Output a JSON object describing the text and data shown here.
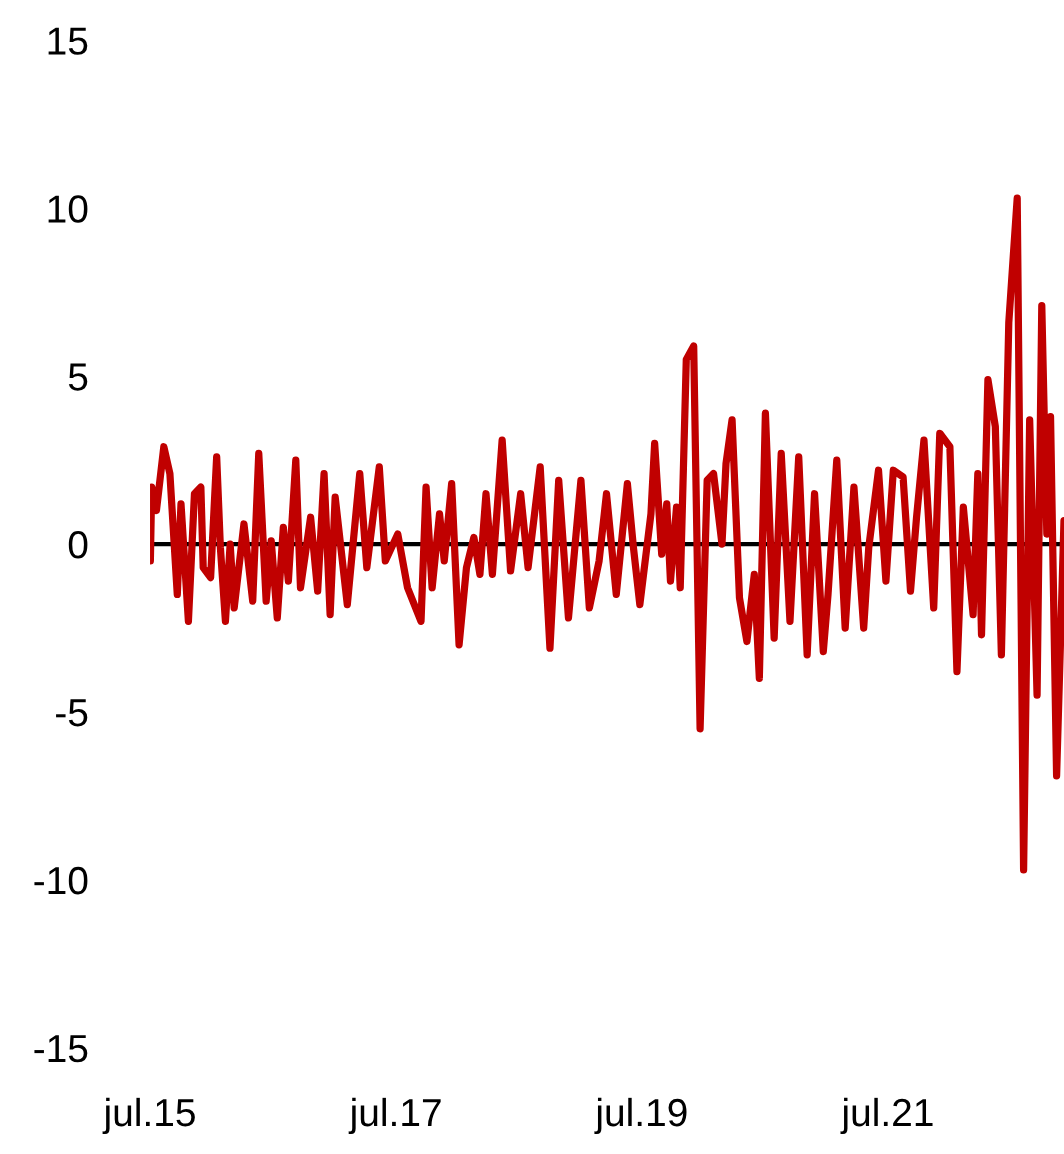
{
  "chart_data": {
    "type": "line",
    "x": [
      "2015-07-02",
      "2015-07-06",
      "2015-07-20",
      "2015-08-11",
      "2015-08-29",
      "2015-09-20",
      "2015-10-01",
      "2015-10-23",
      "2015-11-10",
      "2015-11-29",
      "2015-12-06",
      "2015-12-28",
      "2016-01-15",
      "2016-01-26",
      "2016-02-10",
      "2016-02-24",
      "2016-03-07",
      "2016-04-05",
      "2016-05-01",
      "2016-05-19",
      "2016-06-10",
      "2016-06-25",
      "2016-07-13",
      "2016-07-31",
      "2016-08-15",
      "2016-09-06",
      "2016-09-20",
      "2016-10-20",
      "2016-11-10",
      "2016-11-29",
      "2016-12-17",
      "2017-01-01",
      "2017-02-06",
      "2017-03-15",
      "2017-04-05",
      "2017-05-12",
      "2017-05-30",
      "2017-07-06",
      "2017-08-04",
      "2017-09-13",
      "2017-09-28",
      "2017-10-16",
      "2017-11-07",
      "2017-11-21",
      "2017-12-13",
      "2018-01-04",
      "2018-01-26",
      "2018-02-17",
      "2018-03-07",
      "2018-03-25",
      "2018-04-13",
      "2018-05-12",
      "2018-06-06",
      "2018-07-06",
      "2018-07-28",
      "2018-09-02",
      "2018-10-01",
      "2018-10-27",
      "2018-11-25",
      "2019-01-01",
      "2019-01-26",
      "2019-02-24",
      "2019-03-18",
      "2019-04-16",
      "2019-05-19",
      "2019-06-06",
      "2019-06-25",
      "2019-07-28",
      "2019-08-08",
      "2019-08-29",
      "2019-09-13",
      "2019-09-24",
      "2019-10-12",
      "2019-10-23",
      "2019-11-10",
      "2019-12-02",
      "2019-12-21",
      "2020-01-11",
      "2020-01-30",
      "2020-02-24",
      "2020-03-07",
      "2020-03-25",
      "2020-04-16",
      "2020-05-08",
      "2020-05-30",
      "2020-06-14",
      "2020-07-02",
      "2020-07-28",
      "2020-08-18",
      "2020-09-13",
      "2020-10-09",
      "2020-11-03",
      "2020-11-25",
      "2020-12-21",
      "2021-01-04",
      "2021-01-30",
      "2021-02-24",
      "2021-03-22",
      "2021-04-20",
      "2021-05-05",
      "2021-06-03",
      "2021-06-25",
      "2021-07-17",
      "2021-08-15",
      "2021-09-06",
      "2021-09-24",
      "2021-10-16",
      "2021-11-14",
      "2021-12-02",
      "2022-01-01",
      "2022-01-22",
      "2022-02-10",
      "2022-03-11",
      "2022-03-25",
      "2022-04-05",
      "2022-04-24",
      "2022-05-16",
      "2022-06-03",
      "2022-06-25",
      "2022-07-20",
      "2022-08-08",
      "2022-08-26",
      "2022-09-17",
      "2022-10-01",
      "2022-10-16",
      "2022-10-27",
      "2022-11-14",
      "2022-12-06"
    ],
    "series": [
      {
        "color": "#c00000",
        "values": [
          -0.5,
          1.7,
          1.0,
          2.9,
          2.1,
          -1.5,
          1.2,
          -2.3,
          1.5,
          1.7,
          -0.7,
          -1.0,
          2.6,
          -0.1,
          -2.3,
          0.0,
          -1.9,
          0.6,
          -1.7,
          2.7,
          -1.7,
          0.1,
          -2.2,
          0.5,
          -1.1,
          2.5,
          -1.3,
          0.8,
          -1.4,
          2.1,
          -2.1,
          1.4,
          -1.8,
          2.1,
          -0.7,
          2.3,
          -0.5,
          0.3,
          -1.3,
          -2.3,
          1.7,
          -1.3,
          0.9,
          -0.5,
          1.8,
          -3.0,
          -0.7,
          0.2,
          -0.9,
          1.5,
          -0.9,
          3.1,
          -0.8,
          1.5,
          -0.7,
          2.3,
          -3.1,
          1.9,
          -2.2,
          1.9,
          -1.9,
          -0.5,
          1.5,
          -1.5,
          1.8,
          -0.1,
          -1.8,
          0.9,
          3.0,
          -0.3,
          1.2,
          -1.1,
          1.1,
          -1.3,
          5.5,
          5.9,
          -5.5,
          1.9,
          2.1,
          0.0,
          2.4,
          3.7,
          -1.6,
          -2.9,
          -0.9,
          -4.0,
          3.9,
          -2.8,
          2.7,
          -2.3,
          2.6,
          -3.3,
          1.5,
          -3.2,
          -1.5,
          2.5,
          -2.5,
          1.7,
          -2.5,
          -0.1,
          2.2,
          -1.1,
          2.2,
          2.0,
          -1.4,
          0.8,
          3.1,
          -1.9,
          3.3,
          2.9,
          -3.8,
          1.1,
          -2.1,
          2.1,
          -2.7,
          4.9,
          3.5,
          -3.3,
          6.6,
          10.3,
          -9.7,
          3.7,
          -4.5,
          7.1,
          0.3,
          3.8,
          -6.9,
          0.7
        ]
      }
    ],
    "xlim": [
      "2015-07-01",
      "2022-12-06"
    ],
    "xticks": [
      {
        "value": "2015-07-01",
        "label": "jul.15"
      },
      {
        "value": "2017-07-01",
        "label": "jul.17"
      },
      {
        "value": "2019-07-01",
        "label": "jul.19"
      },
      {
        "value": "2021-07-01",
        "label": "jul.21"
      }
    ],
    "ylim": [
      -15,
      15
    ],
    "yticks": [
      -15,
      -10,
      -5,
      0,
      5,
      10,
      15
    ],
    "ref_lines": [
      {
        "axis": "y",
        "value": 0,
        "color": "#000000"
      }
    ],
    "grid": false
  }
}
